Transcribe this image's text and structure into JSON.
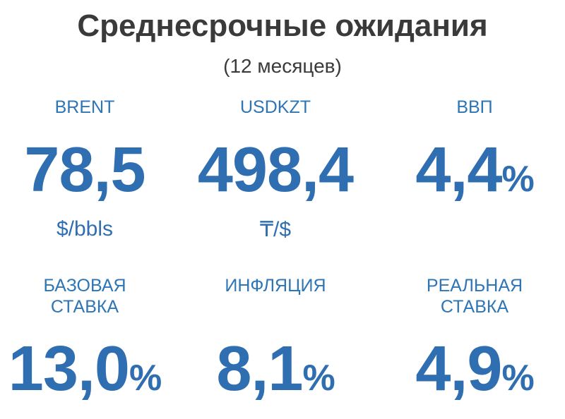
{
  "header": {
    "title": "Среднесрочные ожидания",
    "subtitle": "(12 месяцев)"
  },
  "items": [
    {
      "label": [
        "BRENT"
      ],
      "value": "78,5",
      "unit": "$/bbls"
    },
    {
      "label": [
        "USDKZT"
      ],
      "value": "498,4",
      "unit": "₸/$"
    },
    {
      "label": [
        "ВВП"
      ],
      "value": "4,4",
      "suffix": "%"
    },
    {
      "label": [
        "БАЗОВАЯ",
        "СТАВКА"
      ],
      "value": "13,0",
      "suffix": "%"
    },
    {
      "label": [
        "ИНФЛЯЦИЯ"
      ],
      "value": "8,1",
      "suffix": "%"
    },
    {
      "label": [
        "РЕАЛЬНАЯ",
        "СТАВКА"
      ],
      "value": "4,9",
      "suffix": "%"
    }
  ]
}
